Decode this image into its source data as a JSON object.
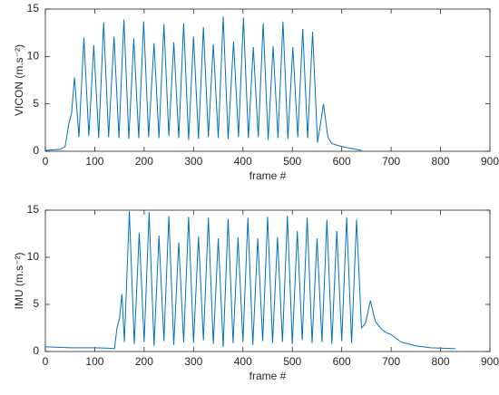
{
  "chart_data": [
    {
      "type": "line",
      "xlabel": "frame #",
      "ylabel": "VICON (m.s⁻²)",
      "xlim": [
        0,
        900
      ],
      "xticks": [
        0,
        100,
        200,
        300,
        400,
        500,
        600,
        700,
        800,
        900
      ],
      "ylim": [
        0,
        15
      ],
      "yticks": [
        0,
        5,
        10,
        15
      ],
      "grid": false,
      "x": [
        0,
        30,
        40,
        48,
        53,
        59,
        68,
        78,
        88,
        98,
        108,
        118,
        128,
        139,
        149,
        159,
        169,
        179,
        189,
        199,
        209,
        220,
        230,
        240,
        250,
        260,
        270,
        280,
        290,
        300,
        310,
        320,
        330,
        340,
        350,
        360,
        370,
        381,
        391,
        401,
        411,
        421,
        431,
        441,
        451,
        461,
        471,
        481,
        491,
        501,
        511,
        521,
        531,
        541,
        551,
        563,
        572,
        580,
        600,
        620,
        640
      ],
      "series": [
        {
          "color": "#0072bd",
          "values": [
            0.1,
            0.2,
            0.5,
            3.0,
            4.0,
            7.8,
            1.5,
            12.0,
            1.6,
            11.2,
            1.4,
            13.6,
            1.5,
            12.1,
            1.4,
            13.9,
            1.3,
            11.9,
            1.4,
            13.7,
            1.5,
            11.4,
            1.4,
            13.4,
            1.6,
            11.5,
            1.4,
            13.5,
            1.2,
            12.1,
            1.3,
            13.1,
            1.5,
            11.3,
            1.4,
            14.2,
            1.3,
            11.6,
            1.5,
            14.1,
            1.4,
            11.0,
            1.5,
            13.5,
            1.2,
            11.1,
            1.4,
            13.7,
            1.3,
            11.0,
            1.5,
            12.9,
            1.4,
            12.6,
            0.9,
            5.0,
            1.5,
            0.8,
            0.5,
            0.3,
            0.1
          ]
        }
      ]
    },
    {
      "type": "line",
      "xlabel": "frame #",
      "ylabel": "IMU (m.s⁻²)",
      "xlim": [
        0,
        900
      ],
      "xticks": [
        0,
        100,
        200,
        300,
        400,
        500,
        600,
        700,
        800,
        900
      ],
      "ylim": [
        0,
        15
      ],
      "yticks": [
        0,
        5,
        10,
        15
      ],
      "grid": false,
      "x": [
        0,
        50,
        100,
        130,
        140,
        145,
        150,
        155,
        160,
        170,
        180,
        190,
        200,
        210,
        220,
        230,
        240,
        250,
        260,
        270,
        280,
        290,
        300,
        310,
        320,
        330,
        340,
        350,
        360,
        370,
        380,
        390,
        400,
        410,
        420,
        430,
        440,
        450,
        460,
        470,
        480,
        490,
        500,
        510,
        520,
        530,
        540,
        550,
        560,
        570,
        580,
        590,
        600,
        610,
        620,
        630,
        640,
        648,
        658,
        668,
        680,
        690,
        700,
        720,
        750,
        780,
        830
      ],
      "series": [
        {
          "color": "#0072bd",
          "values": [
            0.5,
            0.4,
            0.4,
            0.35,
            0.3,
            2.5,
            3.5,
            6.1,
            1.0,
            14.9,
            0.8,
            12.6,
            1.0,
            14.8,
            0.6,
            12.3,
            1.1,
            14.4,
            0.7,
            11.6,
            1.0,
            14.3,
            0.9,
            12.2,
            1.2,
            14.2,
            0.8,
            12.0,
            0.5,
            14.1,
            0.9,
            12.1,
            1.0,
            14.2,
            0.7,
            12.0,
            1.1,
            14.3,
            0.9,
            12.1,
            1.0,
            14.4,
            0.8,
            12.8,
            1.2,
            14.2,
            0.9,
            12.0,
            1.0,
            14.0,
            0.8,
            12.8,
            1.1,
            14.2,
            0.9,
            14.0,
            2.5,
            3.0,
            5.4,
            3.2,
            2.4,
            2.0,
            1.8,
            1.0,
            0.6,
            0.4,
            0.3
          ]
        }
      ]
    }
  ]
}
